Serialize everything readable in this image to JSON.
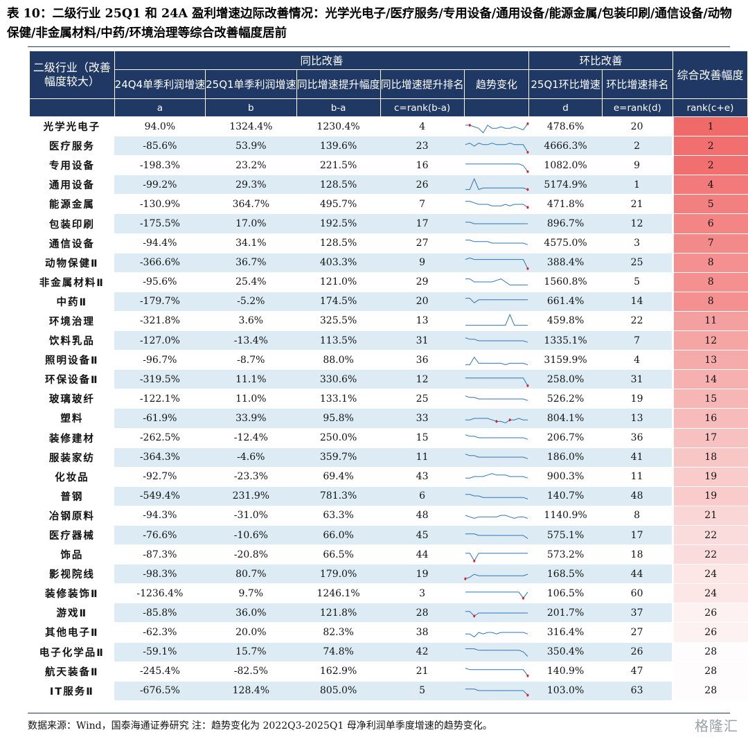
{
  "title": "表 10：二级行业 25Q1 和 24A 盈利增速边际改善情况：光学光电子/医疗服务/专用设备/通用设备/能源金属/包装印刷/通信设备/动物保健/非金属材料/中药/环境治理等综合改善幅度居前",
  "header": {
    "name": "二级行业（改善幅度较大）",
    "yoy_group": "同比改善",
    "qoq_group": "环比改善",
    "summary": "综合改善幅度",
    "col_a": "24Q4单季利润增速",
    "col_b": "25Q1单季利润增速",
    "col_ba": "同比增速提升幅度",
    "col_c": "同比增速提升排名",
    "col_trend": "趋势变化",
    "col_d": "25Q1环比增速",
    "col_e": "环比增速排名",
    "sub_a": "a",
    "sub_b": "b",
    "sub_ba": "b-a",
    "sub_c": "c=rank(b-a)",
    "sub_d": "d",
    "sub_e": "e=rank(d)",
    "sub_rank": "rank(c+e)"
  },
  "rank_color": "#f06a6a",
  "sparkline_color": "#2e75b6",
  "sparkline_marker_color": "#e02020",
  "rows": [
    {
      "name": "光学光电子",
      "a": "94.0%",
      "b": "1324.4%",
      "ba": "1230.4%",
      "c": "4",
      "d": "478.6%",
      "e": "20",
      "rank": "1",
      "rank_value": 1
    },
    {
      "name": "医疗服务",
      "a": "-85.6%",
      "b": "53.9%",
      "ba": "139.6%",
      "c": "23",
      "d": "4666.3%",
      "e": "2",
      "rank": "2",
      "rank_value": 2
    },
    {
      "name": "专用设备",
      "a": "-198.3%",
      "b": "23.2%",
      "ba": "221.5%",
      "c": "16",
      "d": "1082.0%",
      "e": "9",
      "rank": "2",
      "rank_value": 2
    },
    {
      "name": "通用设备",
      "a": "-99.2%",
      "b": "29.3%",
      "ba": "128.5%",
      "c": "26",
      "d": "5174.9%",
      "e": "1",
      "rank": "4",
      "rank_value": 4
    },
    {
      "name": "能源金属",
      "a": "-130.9%",
      "b": "364.7%",
      "ba": "495.7%",
      "c": "7",
      "d": "471.8%",
      "e": "21",
      "rank": "5",
      "rank_value": 5
    },
    {
      "name": "包装印刷",
      "a": "-175.5%",
      "b": "17.0%",
      "ba": "192.5%",
      "c": "17",
      "d": "896.7%",
      "e": "12",
      "rank": "6",
      "rank_value": 6
    },
    {
      "name": "通信设备",
      "a": "-94.4%",
      "b": "34.1%",
      "ba": "128.5%",
      "c": "27",
      "d": "4575.0%",
      "e": "3",
      "rank": "7",
      "rank_value": 7
    },
    {
      "name": "动物保健Ⅱ",
      "a": "-366.6%",
      "b": "36.7%",
      "ba": "403.3%",
      "c": "9",
      "d": "388.4%",
      "e": "25",
      "rank": "8",
      "rank_value": 8
    },
    {
      "name": "非金属材料Ⅱ",
      "a": "-95.6%",
      "b": "25.4%",
      "ba": "121.0%",
      "c": "29",
      "d": "1560.8%",
      "e": "5",
      "rank": "8",
      "rank_value": 8
    },
    {
      "name": "中药Ⅱ",
      "a": "-179.7%",
      "b": "-5.2%",
      "ba": "174.5%",
      "c": "20",
      "d": "661.4%",
      "e": "14",
      "rank": "8",
      "rank_value": 8
    },
    {
      "name": "环境治理",
      "a": "-321.8%",
      "b": "3.6%",
      "ba": "325.5%",
      "c": "13",
      "d": "459.8%",
      "e": "22",
      "rank": "11",
      "rank_value": 11
    },
    {
      "name": "饮料乳品",
      "a": "-127.0%",
      "b": "-13.4%",
      "ba": "113.5%",
      "c": "31",
      "d": "1335.1%",
      "e": "7",
      "rank": "12",
      "rank_value": 12
    },
    {
      "name": "照明设备Ⅱ",
      "a": "-96.7%",
      "b": "-8.7%",
      "ba": "88.0%",
      "c": "36",
      "d": "3159.9%",
      "e": "4",
      "rank": "13",
      "rank_value": 13
    },
    {
      "name": "环保设备Ⅱ",
      "a": "-319.5%",
      "b": "11.1%",
      "ba": "330.6%",
      "c": "12",
      "d": "258.0%",
      "e": "31",
      "rank": "14",
      "rank_value": 14
    },
    {
      "name": "玻璃玻纤",
      "a": "-122.1%",
      "b": "11.0%",
      "ba": "133.1%",
      "c": "25",
      "d": "526.2%",
      "e": "19",
      "rank": "15",
      "rank_value": 15
    },
    {
      "name": "塑料",
      "a": "-61.9%",
      "b": "33.9%",
      "ba": "95.8%",
      "c": "33",
      "d": "804.1%",
      "e": "13",
      "rank": "16",
      "rank_value": 16
    },
    {
      "name": "装修建材",
      "a": "-262.5%",
      "b": "-12.4%",
      "ba": "250.0%",
      "c": "15",
      "d": "206.7%",
      "e": "36",
      "rank": "17",
      "rank_value": 17
    },
    {
      "name": "服装家纺",
      "a": "-364.3%",
      "b": "-4.6%",
      "ba": "359.7%",
      "c": "11",
      "d": "186.0%",
      "e": "41",
      "rank": "18",
      "rank_value": 18
    },
    {
      "name": "化妆品",
      "a": "-92.7%",
      "b": "-23.3%",
      "ba": "69.4%",
      "c": "43",
      "d": "900.3%",
      "e": "11",
      "rank": "19",
      "rank_value": 19
    },
    {
      "name": "普钢",
      "a": "-549.4%",
      "b": "231.9%",
      "ba": "781.3%",
      "c": "6",
      "d": "140.7%",
      "e": "48",
      "rank": "19",
      "rank_value": 19
    },
    {
      "name": "冶钢原料",
      "a": "-94.3%",
      "b": "-31.0%",
      "ba": "63.3%",
      "c": "48",
      "d": "1140.9%",
      "e": "8",
      "rank": "21",
      "rank_value": 21
    },
    {
      "name": "医疗器械",
      "a": "-76.6%",
      "b": "-10.6%",
      "ba": "66.0%",
      "c": "45",
      "d": "575.1%",
      "e": "17",
      "rank": "22",
      "rank_value": 22
    },
    {
      "name": "饰品",
      "a": "-87.3%",
      "b": "-20.8%",
      "ba": "66.5%",
      "c": "44",
      "d": "573.2%",
      "e": "18",
      "rank": "22",
      "rank_value": 22
    },
    {
      "name": "影视院线",
      "a": "-98.3%",
      "b": "80.7%",
      "ba": "179.0%",
      "c": "19",
      "d": "168.5%",
      "e": "44",
      "rank": "24",
      "rank_value": 24
    },
    {
      "name": "装修装饰Ⅱ",
      "a": "-1236.4%",
      "b": "9.7%",
      "ba": "1246.1%",
      "c": "3",
      "d": "106.5%",
      "e": "60",
      "rank": "24",
      "rank_value": 24
    },
    {
      "name": "游戏Ⅱ",
      "a": "-85.8%",
      "b": "36.0%",
      "ba": "121.8%",
      "c": "28",
      "d": "201.7%",
      "e": "37",
      "rank": "26",
      "rank_value": 26
    },
    {
      "name": "其他电子Ⅱ",
      "a": "-62.3%",
      "b": "20.0%",
      "ba": "82.3%",
      "c": "38",
      "d": "316.4%",
      "e": "27",
      "rank": "26",
      "rank_value": 26
    },
    {
      "name": "电子化学品Ⅱ",
      "a": "-59.1%",
      "b": "15.7%",
      "ba": "74.8%",
      "c": "42",
      "d": "350.4%",
      "e": "26",
      "rank": "28",
      "rank_value": 28
    },
    {
      "name": "航天装备Ⅱ",
      "a": "-245.4%",
      "b": "-82.5%",
      "ba": "162.9%",
      "c": "21",
      "d": "140.9%",
      "e": "47",
      "rank": "28",
      "rank_value": 28
    },
    {
      "name": "IT服务Ⅱ",
      "a": "-676.5%",
      "b": "128.4%",
      "ba": "805.0%",
      "c": "5",
      "d": "103.0%",
      "e": "63",
      "rank": "28",
      "rank_value": 28
    }
  ],
  "sparklines": [
    [
      4,
      4,
      5,
      6,
      9,
      4,
      6,
      6,
      5,
      6,
      6,
      5,
      6,
      7,
      3
    ],
    [
      4,
      3,
      5,
      3,
      4,
      4,
      3,
      4,
      4,
      4,
      3,
      4,
      4,
      4,
      9
    ],
    [
      4,
      4,
      4,
      4,
      4,
      4,
      4,
      4,
      4,
      4,
      4,
      4,
      4,
      5,
      9
    ],
    [
      8,
      8,
      1,
      8,
      7,
      7,
      7,
      7,
      7,
      7,
      7,
      7,
      7,
      7,
      8
    ],
    [
      3,
      3,
      4,
      5,
      5,
      5,
      6,
      6,
      6,
      5,
      6,
      5,
      5,
      5,
      7
    ],
    [
      4,
      4,
      5,
      5,
      5,
      5,
      5,
      5,
      5,
      5,
      5,
      5,
      5,
      5,
      5
    ],
    [
      3,
      3,
      4,
      4,
      4,
      4,
      5,
      5,
      5,
      5,
      5,
      5,
      5,
      5,
      6
    ],
    [
      3,
      2,
      3,
      3,
      3,
      3,
      3,
      3,
      3,
      3,
      3,
      3,
      3,
      3,
      9
    ],
    [
      3,
      3,
      5,
      5,
      5,
      5,
      5,
      4,
      3,
      5,
      7,
      7,
      7,
      7,
      7
    ],
    [
      3,
      3,
      6,
      4,
      4,
      4,
      4,
      4,
      4,
      4,
      4,
      4,
      4,
      4,
      4
    ],
    [
      8,
      8,
      8,
      8,
      8,
      8,
      8,
      8,
      8,
      8,
      1,
      8,
      8,
      8,
      8
    ],
    [
      3,
      4,
      4,
      5,
      5,
      5,
      5,
      5,
      5,
      5,
      5,
      5,
      5,
      5,
      6
    ],
    [
      8,
      8,
      3,
      7,
      7,
      7,
      7,
      7,
      7,
      8,
      7,
      7,
      7,
      7,
      8
    ],
    [
      4,
      4,
      4,
      4,
      4,
      4,
      4,
      4,
      4,
      4,
      4,
      4,
      4,
      4,
      9
    ],
    [
      3,
      4,
      4,
      5,
      5,
      5,
      5,
      5,
      5,
      5,
      5,
      5,
      5,
      5,
      6
    ],
    [
      6,
      6,
      5,
      5,
      5,
      5,
      6,
      7,
      7,
      8,
      6,
      6,
      5,
      6,
      6
    ],
    [
      3,
      4,
      4,
      5,
      5,
      5,
      5,
      5,
      5,
      5,
      5,
      5,
      5,
      5,
      6
    ],
    [
      3,
      4,
      4,
      5,
      5,
      5,
      5,
      5,
      5,
      5,
      5,
      5,
      5,
      5,
      6
    ],
    [
      6,
      6,
      5,
      5,
      5,
      4,
      3,
      4,
      4,
      4,
      5,
      5,
      5,
      5,
      6
    ],
    [
      4,
      4,
      5,
      5,
      6,
      6,
      6,
      6,
      6,
      6,
      6,
      6,
      6,
      6,
      7
    ],
    [
      5,
      6,
      7,
      6,
      6,
      6,
      6,
      6,
      5,
      5,
      6,
      7,
      6,
      6,
      7
    ],
    [
      4,
      4,
      4,
      5,
      5,
      5,
      5,
      5,
      5,
      5,
      5,
      5,
      5,
      5,
      7
    ],
    [
      4,
      4,
      9,
      4,
      4,
      4,
      4,
      4,
      4,
      4,
      4,
      4,
      4,
      4,
      4
    ],
    [
      8,
      7,
      5,
      6,
      6,
      6,
      6,
      6,
      6,
      6,
      6,
      6,
      6,
      6,
      5
    ],
    [
      4,
      4,
      4,
      4,
      4,
      4,
      4,
      4,
      4,
      4,
      4,
      4,
      4,
      8,
      4
    ],
    [
      4,
      4,
      7,
      5,
      5,
      5,
      5,
      5,
      5,
      5,
      5,
      5,
      5,
      5,
      5
    ],
    [
      6,
      6,
      8,
      5,
      6,
      5,
      5,
      6,
      5,
      5,
      5,
      5,
      5,
      5,
      6
    ],
    [
      3,
      3,
      3,
      4,
      4,
      4,
      4,
      4,
      4,
      4,
      4,
      4,
      4,
      5,
      8
    ],
    [
      3,
      4,
      4,
      4,
      4,
      4,
      4,
      4,
      4,
      4,
      4,
      4,
      4,
      4,
      8
    ],
    [
      4,
      4,
      4,
      5,
      5,
      5,
      5,
      5,
      5,
      5,
      5,
      5,
      5,
      5,
      8
    ]
  ],
  "sparkline_markers": [
    [
      1,
      14
    ],
    [
      14
    ],
    [
      14
    ],
    [
      14
    ],
    [
      14
    ],
    [],
    [],
    [
      14
    ],
    [],
    [],
    [],
    [],
    [],
    [
      14
    ],
    [],
    [
      10,
      7
    ],
    [],
    [],
    [],
    [],
    [],
    [],
    [
      2
    ],
    [
      0
    ],
    [
      13
    ],
    [
      2
    ],
    [],
    [],
    [
      14
    ],
    [
      14
    ]
  ],
  "footnote": "数据来源：Wind，国泰海通证券研究 注：趋势变化为 2022Q3-2025Q1 母净利润单季度增速的趋势变化。",
  "watermark": "格隆汇"
}
